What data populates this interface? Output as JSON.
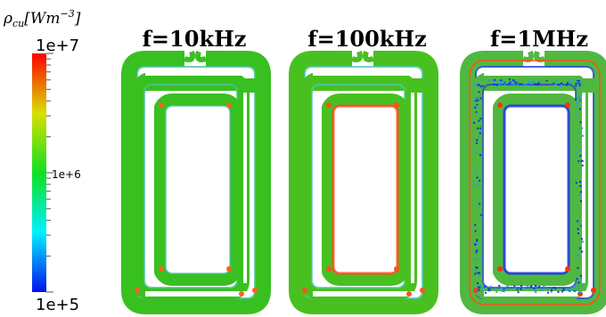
{
  "colorbar": {
    "symbol": "ρ",
    "symbol_sub": "cu",
    "unit_open": "[Wm",
    "unit_exp": "−3",
    "unit_close": "]",
    "max_label": "1e+7",
    "mid_label": "1e+6",
    "min_label": "1e+5",
    "colors": [
      "#0010f0",
      "#00f0ff",
      "#10e020",
      "#d8e000",
      "#ff0000"
    ]
  },
  "panels": [
    {
      "title": "f=10kHz",
      "base_color": "#38c020",
      "edge_color": "#4cc0a0",
      "corner_color": "#ff6020",
      "inner_edge_color": "#50c8b0"
    },
    {
      "title": "f=100kHz",
      "base_color": "#48c020",
      "edge_color": "#50c8b8",
      "corner_color": "#ff5020",
      "inner_edge_color": "#ff4a20"
    },
    {
      "title": "f=1MHz",
      "base_color": "#50b840",
      "edge_color": "#2040d8",
      "corner_color": "#ff3010",
      "inner_edge_color": "#1830e0"
    }
  ]
}
